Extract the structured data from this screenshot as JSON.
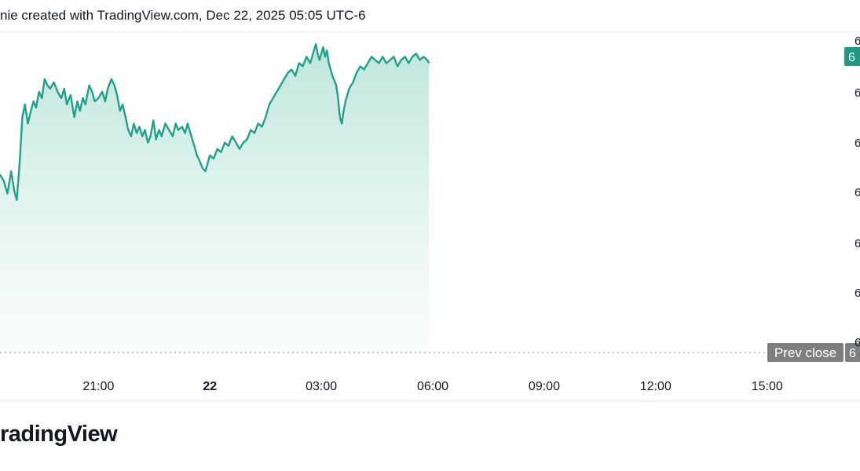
{
  "header": {
    "text": "nie created with TradingView.com, Dec 22, 2025 05:05 UTC-6"
  },
  "footer": {
    "logo_text": "radingView"
  },
  "colors": {
    "line": "#22a08a",
    "area_top": "#bfe6dc",
    "area_bottom": "#f4fbf9",
    "last_price_badge": "#1e9b82",
    "prev_close_badge": "#7f7f7f",
    "prev_close_line": "#9aa0a6",
    "grid_line": "#eef0f3"
  },
  "prev_close": {
    "label": "Prev close",
    "value_glyph": "6"
  },
  "last_price": {
    "value_glyph": "6"
  },
  "y_tick_glyphs": [
    "6",
    "6",
    "6",
    "6",
    "6",
    "6",
    "6"
  ],
  "chart_data": {
    "type": "area",
    "x_unit": "hours relative to Dec 22 00:00 (UTC-6)",
    "xlim": [
      -5.65,
      17.5
    ],
    "ylim": [
      0,
      100
    ],
    "y_scale_note": "relative price index (price axis values cropped out of view)",
    "x_tick_labels": [
      {
        "x": -3,
        "label": "21:00",
        "bold": false
      },
      {
        "x": 0,
        "label": "22",
        "bold": true
      },
      {
        "x": 3,
        "label": "03:00",
        "bold": false
      },
      {
        "x": 6,
        "label": "06:00",
        "bold": false
      },
      {
        "x": 9,
        "label": "09:00",
        "bold": false
      },
      {
        "x": 12,
        "label": "12:00",
        "bold": false
      },
      {
        "x": 15,
        "label": "15:00",
        "bold": false
      }
    ],
    "prev_close_value": 0,
    "points": [
      [
        -5.65,
        56
      ],
      [
        -5.55,
        54
      ],
      [
        -5.45,
        50
      ],
      [
        -5.35,
        57
      ],
      [
        -5.27,
        51
      ],
      [
        -5.2,
        48
      ],
      [
        -5.12,
        60
      ],
      [
        -5.05,
        74
      ],
      [
        -4.98,
        78
      ],
      [
        -4.9,
        72
      ],
      [
        -4.82,
        76
      ],
      [
        -4.75,
        79
      ],
      [
        -4.68,
        77
      ],
      [
        -4.6,
        82
      ],
      [
        -4.52,
        80
      ],
      [
        -4.45,
        86
      ],
      [
        -4.37,
        84
      ],
      [
        -4.3,
        83
      ],
      [
        -4.2,
        85
      ],
      [
        -4.1,
        82
      ],
      [
        -4.0,
        80
      ],
      [
        -3.92,
        83
      ],
      [
        -3.85,
        78
      ],
      [
        -3.75,
        81
      ],
      [
        -3.65,
        74
      ],
      [
        -3.57,
        79
      ],
      [
        -3.5,
        76
      ],
      [
        -3.42,
        80
      ],
      [
        -3.35,
        78
      ],
      [
        -3.25,
        84
      ],
      [
        -3.17,
        82
      ],
      [
        -3.1,
        79
      ],
      [
        -3.0,
        80
      ],
      [
        -2.9,
        82
      ],
      [
        -2.82,
        79
      ],
      [
        -2.75,
        83
      ],
      [
        -2.65,
        86
      ],
      [
        -2.57,
        84
      ],
      [
        -2.5,
        81
      ],
      [
        -2.42,
        76
      ],
      [
        -2.35,
        78
      ],
      [
        -2.27,
        74
      ],
      [
        -2.2,
        70
      ],
      [
        -2.12,
        68
      ],
      [
        -2.05,
        72
      ],
      [
        -1.97,
        69
      ],
      [
        -1.9,
        71
      ],
      [
        -1.82,
        68
      ],
      [
        -1.75,
        70
      ],
      [
        -1.67,
        66
      ],
      [
        -1.6,
        68
      ],
      [
        -1.52,
        73
      ],
      [
        -1.45,
        67
      ],
      [
        -1.37,
        70
      ],
      [
        -1.3,
        68
      ],
      [
        -1.2,
        72
      ],
      [
        -1.1,
        70
      ],
      [
        -1.0,
        68
      ],
      [
        -0.92,
        72
      ],
      [
        -0.85,
        70
      ],
      [
        -0.75,
        71
      ],
      [
        -0.67,
        69
      ],
      [
        -0.6,
        72
      ],
      [
        -0.5,
        68
      ],
      [
        -0.42,
        65
      ],
      [
        -0.35,
        62
      ],
      [
        -0.27,
        60
      ],
      [
        -0.2,
        58
      ],
      [
        -0.12,
        57
      ],
      [
        -0.05,
        60
      ],
      [
        0.0,
        62
      ],
      [
        0.1,
        61
      ],
      [
        0.2,
        64
      ],
      [
        0.3,
        63
      ],
      [
        0.4,
        66
      ],
      [
        0.5,
        65
      ],
      [
        0.6,
        68
      ],
      [
        0.7,
        66
      ],
      [
        0.8,
        64
      ],
      [
        0.9,
        66
      ],
      [
        1.0,
        67
      ],
      [
        1.1,
        70
      ],
      [
        1.2,
        69
      ],
      [
        1.3,
        72
      ],
      [
        1.4,
        71
      ],
      [
        1.5,
        74
      ],
      [
        1.6,
        78
      ],
      [
        1.7,
        80
      ],
      [
        1.8,
        82
      ],
      [
        1.9,
        84
      ],
      [
        2.0,
        86
      ],
      [
        2.1,
        88
      ],
      [
        2.2,
        89
      ],
      [
        2.3,
        87
      ],
      [
        2.4,
        91
      ],
      [
        2.5,
        90
      ],
      [
        2.6,
        93
      ],
      [
        2.7,
        91
      ],
      [
        2.8,
        95
      ],
      [
        2.85,
        97
      ],
      [
        2.9,
        94
      ],
      [
        2.95,
        92
      ],
      [
        3.0,
        94
      ],
      [
        3.05,
        96
      ],
      [
        3.1,
        93
      ],
      [
        3.15,
        95
      ],
      [
        3.2,
        91
      ],
      [
        3.3,
        87
      ],
      [
        3.4,
        84
      ],
      [
        3.45,
        80
      ],
      [
        3.5,
        74
      ],
      [
        3.55,
        72
      ],
      [
        3.6,
        76
      ],
      [
        3.65,
        79
      ],
      [
        3.75,
        83
      ],
      [
        3.85,
        85
      ],
      [
        3.95,
        88
      ],
      [
        4.05,
        90
      ],
      [
        4.15,
        89
      ],
      [
        4.25,
        91
      ],
      [
        4.35,
        93
      ],
      [
        4.45,
        92
      ],
      [
        4.55,
        91
      ],
      [
        4.65,
        93
      ],
      [
        4.75,
        91
      ],
      [
        4.85,
        92
      ],
      [
        4.95,
        93
      ],
      [
        5.05,
        90
      ],
      [
        5.15,
        92
      ],
      [
        5.25,
        93
      ],
      [
        5.35,
        91
      ],
      [
        5.45,
        93
      ],
      [
        5.55,
        94
      ],
      [
        5.65,
        92
      ],
      [
        5.75,
        93
      ],
      [
        5.85,
        92
      ],
      [
        5.9,
        91
      ]
    ]
  }
}
